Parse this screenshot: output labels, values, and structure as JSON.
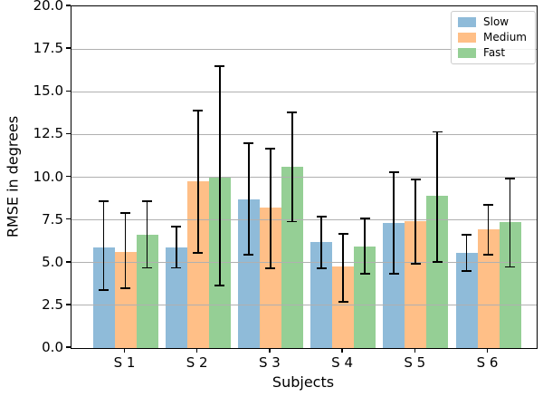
{
  "chart_data": {
    "type": "bar",
    "title": "",
    "xlabel": "Subjects",
    "ylabel": "RMSE in degrees",
    "categories": [
      "S 1",
      "S 2",
      "S 3",
      "S 4",
      "S 5",
      "S 6"
    ],
    "series": [
      {
        "name": "Slow",
        "color": "#8fbbd9",
        "values": [
          5.9,
          5.9,
          8.7,
          6.2,
          7.3,
          5.55
        ],
        "err_low": [
          3.4,
          4.7,
          5.45,
          4.65,
          4.35,
          4.5
        ],
        "err_high": [
          8.6,
          7.1,
          12.0,
          7.7,
          10.3,
          6.65
        ]
      },
      {
        "name": "Medium",
        "color": "#ffbf87",
        "values": [
          5.65,
          9.75,
          8.2,
          4.75,
          7.45,
          6.95
        ],
        "err_low": [
          3.5,
          5.55,
          4.65,
          2.7,
          4.95,
          5.45
        ],
        "err_high": [
          7.9,
          13.9,
          11.65,
          6.7,
          9.85,
          8.4
        ]
      },
      {
        "name": "Fast",
        "color": "#95cf95",
        "values": [
          6.65,
          10.05,
          10.6,
          5.95,
          8.9,
          7.4
        ],
        "err_low": [
          4.7,
          3.65,
          7.4,
          4.35,
          5.05,
          4.75
        ],
        "err_high": [
          8.6,
          16.5,
          13.8,
          7.6,
          12.65,
          9.9
        ]
      }
    ],
    "ylim": [
      0,
      20
    ],
    "yticks": [
      "0.0",
      "2.5",
      "5.0",
      "7.5",
      "10.0",
      "12.5",
      "15.0",
      "17.5",
      "20.0"
    ],
    "grid": true,
    "grid_color": "#b0b0b0",
    "error_bar_color": "#000000",
    "legend_position": "upper right"
  }
}
